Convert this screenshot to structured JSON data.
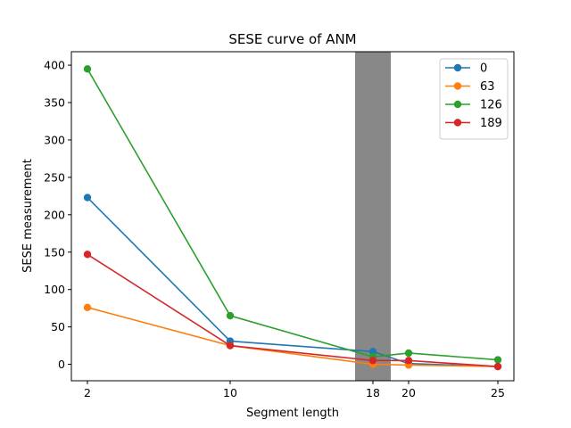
{
  "chart_data": {
    "type": "line",
    "title": "SESE curve of ANM",
    "xlabel": "Segment length",
    "ylabel": "SESE measurement",
    "x": [
      2,
      10,
      18,
      20,
      25
    ],
    "xticks": [
      2,
      10,
      18,
      20,
      25
    ],
    "yticks": [
      0,
      50,
      100,
      150,
      200,
      250,
      300,
      350,
      400
    ],
    "xlim": [
      1.1,
      25.9
    ],
    "ylim": [
      -22,
      418
    ],
    "grid": false,
    "legend_position": "top-right",
    "highlight_band": {
      "x_start": 17,
      "x_end": 19,
      "color": "#888888"
    },
    "series": [
      {
        "name": "0",
        "color": "#1f77b4",
        "values": [
          223,
          31,
          17,
          1,
          -3
        ]
      },
      {
        "name": "63",
        "color": "#ff7f0e",
        "values": [
          76,
          25,
          0,
          -1,
          -3
        ]
      },
      {
        "name": "126",
        "color": "#2ca02c",
        "values": [
          395,
          65,
          10,
          15,
          6
        ]
      },
      {
        "name": "189",
        "color": "#d62728",
        "values": [
          147,
          25,
          5,
          5,
          -3
        ]
      }
    ]
  }
}
